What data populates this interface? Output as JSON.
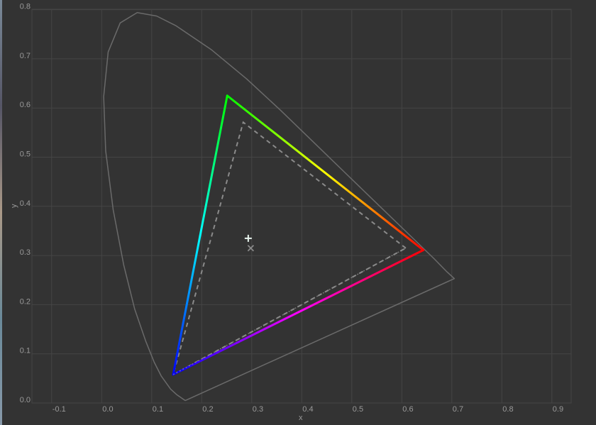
{
  "chart_data": {
    "type": "line",
    "title": "",
    "xlabel": "x",
    "ylabel": "y",
    "xlim": [
      -0.14,
      0.94
    ],
    "ylim": [
      0.0,
      0.8
    ],
    "grid": true,
    "xticks": [
      "-0.1",
      "0.0",
      "0.1",
      "0.2",
      "0.3",
      "0.4",
      "0.5",
      "0.6",
      "0.7",
      "0.8",
      "0.9"
    ],
    "xtick_values": [
      -0.1,
      0,
      0.1,
      0.2,
      0.3,
      0.4,
      0.5,
      0.6,
      0.7,
      0.8,
      0.9
    ],
    "yticks": [
      "0.0",
      "0.1",
      "0.2",
      "0.3",
      "0.4",
      "0.5",
      "0.6",
      "0.7",
      "0.8"
    ],
    "ytick_values": [
      0,
      0.1,
      0.2,
      0.3,
      0.4,
      0.5,
      0.6,
      0.7,
      0.8
    ],
    "spectral_locus": [
      [
        0.167,
        0.005
      ],
      [
        0.15,
        0.017
      ],
      [
        0.138,
        0.028
      ],
      [
        0.119,
        0.055
      ],
      [
        0.105,
        0.083
      ],
      [
        0.088,
        0.126
      ],
      [
        0.066,
        0.191
      ],
      [
        0.044,
        0.281
      ],
      [
        0.023,
        0.393
      ],
      [
        0.008,
        0.513
      ],
      [
        0.004,
        0.623
      ],
      [
        0.013,
        0.714
      ],
      [
        0.037,
        0.773
      ],
      [
        0.071,
        0.794
      ],
      [
        0.11,
        0.787
      ],
      [
        0.149,
        0.767
      ],
      [
        0.22,
        0.718
      ],
      [
        0.29,
        0.659
      ],
      [
        0.358,
        0.595
      ],
      [
        0.426,
        0.528
      ],
      [
        0.492,
        0.463
      ],
      [
        0.552,
        0.404
      ],
      [
        0.602,
        0.355
      ],
      [
        0.664,
        0.294
      ],
      [
        0.69,
        0.267
      ],
      [
        0.705,
        0.253
      ]
    ],
    "gamut_primary": {
      "red": [
        0.643,
        0.311
      ],
      "green": [
        0.251,
        0.625
      ],
      "blue": [
        0.143,
        0.058
      ]
    },
    "gamut_reference": {
      "red": [
        0.608,
        0.315
      ],
      "green": [
        0.283,
        0.571
      ],
      "blue": [
        0.143,
        0.058
      ]
    },
    "white_point_plus": [
      0.293,
      0.335
    ],
    "white_point_cross": [
      0.298,
      0.315
    ],
    "colors": {
      "background": "#333333",
      "grid": "#454545",
      "locus": "#6a6a6a",
      "reference": "#8a8a8a",
      "red": "#ff0000",
      "green": "#00ff00",
      "blue": "#0000ff",
      "yellow": "#ffff00",
      "cyan": "#00ffff",
      "magenta": "#ff00ff"
    }
  }
}
